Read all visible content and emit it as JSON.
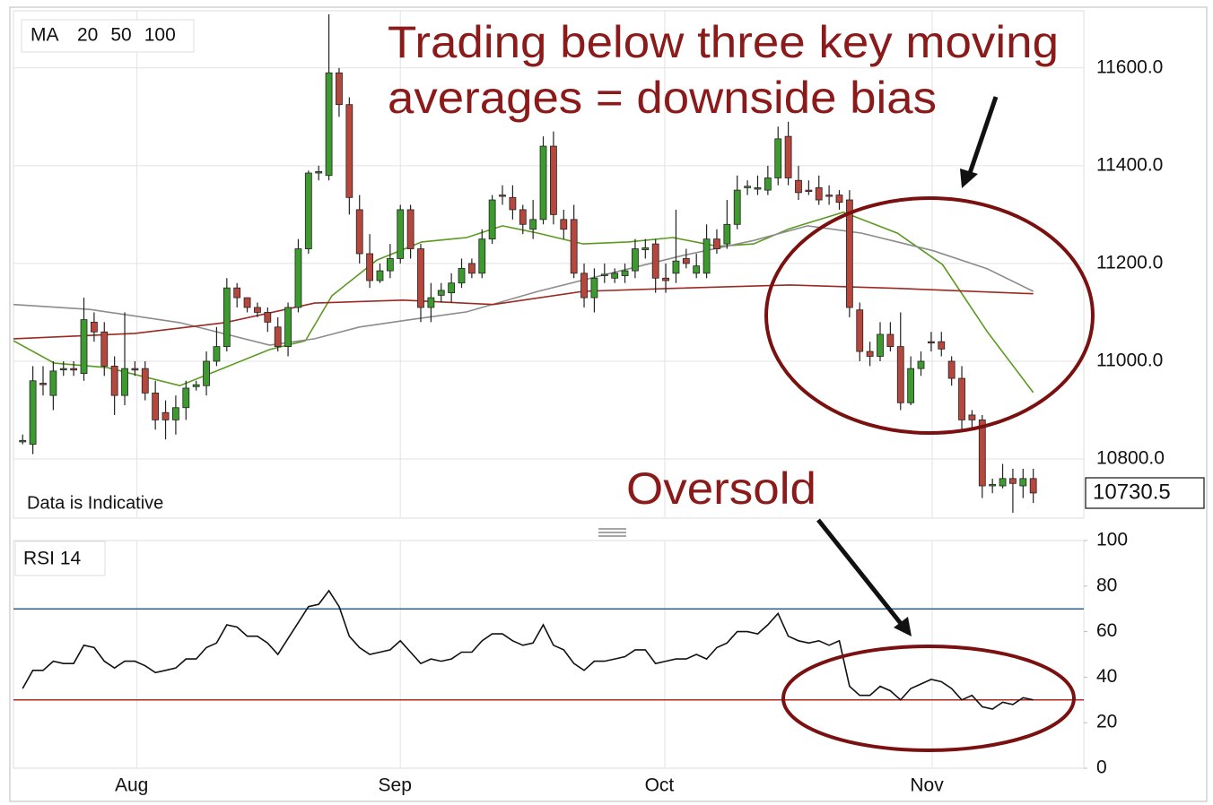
{
  "chart_data": [
    {
      "type": "candlestick",
      "legend_title": "MA",
      "note": "Data is Indicative",
      "annotations": [
        "Trading below three key moving",
        "averages = downside bias",
        "Oversold"
      ],
      "up_color": "#3d9a2f",
      "down_color": "#b5473d",
      "open": [
        10835,
        10830,
        10955,
        10930,
        10983,
        10985,
        10975,
        11080,
        11060,
        10990,
        10930,
        10985,
        10985,
        10935,
        10895,
        10880,
        10905,
        10948,
        10950,
        11000,
        11030,
        11150,
        11130,
        11110,
        11100,
        11070,
        11030,
        11110,
        11230,
        11385,
        11380,
        11590,
        11525,
        11310,
        11220,
        11165,
        11185,
        11210,
        11310,
        11230,
        11110,
        11135,
        11140,
        11160,
        11200,
        11180,
        11250,
        11340,
        11335,
        11310,
        11270,
        11290,
        11440,
        11290,
        11290,
        11180,
        11130,
        11175,
        11170,
        11175,
        11185,
        11228,
        11240,
        11170,
        11180,
        11210,
        11180,
        11180,
        11250,
        11240,
        11280,
        11355,
        11352,
        11350,
        11375,
        11460,
        11370,
        11350,
        11355,
        11340,
        11340,
        11330,
        11105,
        11020,
        11010,
        11055,
        11030,
        10915,
        10985,
        11040,
        11040,
        11000,
        10965,
        10890,
        10880,
        10745,
        10745,
        10760,
        10745,
        10760
      ],
      "high": [
        10850,
        10990,
        10990,
        11000,
        11000,
        11000,
        11130,
        11100,
        11080,
        11010,
        11100,
        11000,
        11000,
        10960,
        10920,
        10930,
        10960,
        10960,
        11020,
        11070,
        11170,
        11160,
        11130,
        11120,
        11110,
        11090,
        11120,
        11250,
        11390,
        11400,
        11710,
        11600,
        11540,
        11340,
        11260,
        11200,
        11240,
        11320,
        11320,
        11240,
        11160,
        11160,
        11180,
        11210,
        11210,
        11270,
        11340,
        11360,
        11360,
        11320,
        11330,
        11460,
        11470,
        11310,
        11320,
        11200,
        11190,
        11200,
        11190,
        11200,
        11250,
        11250,
        11250,
        11200,
        11310,
        11230,
        11220,
        11280,
        11270,
        11330,
        11380,
        11370,
        11380,
        11400,
        11480,
        11490,
        11400,
        11370,
        11380,
        11360,
        11350,
        11350,
        11120,
        11040,
        11080,
        11080,
        11100,
        11010,
        11020,
        11060,
        11060,
        11010,
        10990,
        10900,
        10890,
        10760,
        10790,
        10780,
        10780,
        10780
      ],
      "low": [
        10830,
        10810,
        10930,
        10900,
        10970,
        10970,
        10960,
        11040,
        10970,
        10890,
        10910,
        10970,
        10920,
        10860,
        10840,
        10850,
        10880,
        10940,
        10930,
        10990,
        11020,
        11110,
        11100,
        11090,
        11060,
        11020,
        11010,
        11100,
        11220,
        11370,
        11370,
        11500,
        11300,
        11200,
        11150,
        11160,
        11170,
        11200,
        11210,
        11080,
        11080,
        11120,
        11120,
        11150,
        11170,
        11170,
        11240,
        11320,
        11290,
        11260,
        11250,
        11280,
        11280,
        11250,
        11170,
        11110,
        11100,
        11160,
        11160,
        11160,
        11170,
        11210,
        11140,
        11140,
        11160,
        11190,
        11170,
        11170,
        11220,
        11230,
        11270,
        11340,
        11340,
        11340,
        11360,
        11360,
        11330,
        11340,
        11320,
        11320,
        11310,
        11090,
        11000,
        10990,
        11000,
        11020,
        10900,
        10910,
        10970,
        11020,
        11010,
        10950,
        10860,
        10860,
        10720,
        10730,
        10740,
        10690,
        10720,
        10710
      ],
      "close": [
        10838,
        10960,
        10952,
        10980,
        10985,
        10982,
        11085,
        11060,
        10990,
        10930,
        10985,
        10982,
        10935,
        10880,
        10880,
        10905,
        10945,
        10952,
        11000,
        11030,
        11150,
        11130,
        11110,
        11100,
        11080,
        11030,
        11110,
        11230,
        11385,
        11388,
        11590,
        11525,
        11335,
        11220,
        11165,
        11185,
        11210,
        11310,
        11230,
        11110,
        11130,
        11145,
        11160,
        11190,
        11180,
        11250,
        11330,
        11338,
        11310,
        11280,
        11290,
        11440,
        11300,
        11270,
        11180,
        11130,
        11170,
        11178,
        11180,
        11185,
        11230,
        11232,
        11170,
        11165,
        11205,
        11200,
        11195,
        11250,
        11230,
        11280,
        11350,
        11358,
        11355,
        11375,
        11455,
        11375,
        11345,
        11348,
        11330,
        11338,
        11325,
        11110,
        11020,
        11010,
        11055,
        11030,
        10915,
        10985,
        11000,
        11038,
        11025,
        10965,
        10880,
        10880,
        10745,
        10748,
        10760,
        10750,
        10760,
        10730.5
      ],
      "series": [
        {
          "name": "20",
          "color": "#5a9a1e",
          "x": [
            -0.9,
            3.1,
            8.3,
            15.4,
            19.8,
            24.2,
            27.7,
            30.3,
            34.7,
            39.1,
            43.5,
            47,
            50.5,
            54.9,
            59.3,
            63.7,
            68.1,
            71.6,
            75.1,
            80.4,
            85.7,
            90.1,
            94.5,
            99
          ],
          "values": [
            11042,
            10996,
            10987,
            10950,
            10987,
            11024,
            11042,
            11134,
            11207,
            11244,
            11253,
            11277,
            11262,
            11240,
            11244,
            11253,
            11235,
            11240,
            11271,
            11305,
            11262,
            11198,
            11060,
            10936
          ]
        },
        {
          "name": "50",
          "color": "#8c8c8c",
          "x": [
            -0.9,
            6.6,
            15.4,
            24.2,
            28.6,
            33,
            37.3,
            43.5,
            50.5,
            57.6,
            64.6,
            71.6,
            76.9,
            82.2,
            89.2,
            94.5,
            99
          ],
          "values": [
            11116,
            11106,
            11079,
            11033,
            11046,
            11070,
            11083,
            11101,
            11143,
            11180,
            11216,
            11247,
            11277,
            11262,
            11226,
            11189,
            11143
          ]
        },
        {
          "name": "100",
          "color": "#9b2a22",
          "x": [
            -0.9,
            11,
            19.8,
            28.6,
            37.3,
            46.1,
            54.9,
            63.7,
            75.1,
            85.7,
            99
          ],
          "values": [
            11046,
            11057,
            11079,
            11119,
            11125,
            11116,
            11143,
            11149,
            11156,
            11149,
            11138
          ]
        }
      ],
      "xlim": [
        -0.9,
        103.95
      ],
      "ylim": [
        10679,
        11717
      ],
      "yticks": [
        {
          "value": 10800,
          "label": "10800.0"
        },
        {
          "value": 11000,
          "label": "11000.0"
        },
        {
          "value": 11200,
          "label": "11200.0"
        },
        {
          "value": 11400,
          "label": "11400.0"
        },
        {
          "value": 11600,
          "label": "11600.0"
        }
      ],
      "grid": true
    },
    {
      "type": "line",
      "series": [
        {
          "name": "RSI 14",
          "color": "#111111",
          "values": [
            35,
            43,
            43,
            47,
            46,
            46,
            54,
            53,
            47,
            44,
            47,
            47,
            45,
            42,
            43,
            44,
            48,
            48,
            53,
            55,
            63,
            62,
            58,
            58,
            55,
            50,
            57,
            64,
            71,
            72,
            78,
            71,
            58,
            53,
            50,
            51,
            52,
            56,
            51,
            46,
            48,
            47,
            48,
            51,
            51,
            56,
            59,
            59,
            56,
            54,
            55,
            63,
            54,
            52,
            46,
            43,
            47,
            47,
            48,
            49,
            52,
            52,
            46,
            47,
            48,
            48,
            50,
            48,
            53,
            55,
            60,
            60,
            59,
            63,
            68,
            58,
            56,
            55,
            56,
            54,
            56,
            36,
            32,
            32,
            36,
            34,
            30,
            35,
            37,
            39,
            38,
            35,
            30,
            32,
            27,
            26,
            29,
            28,
            31,
            30
          ]
        }
      ],
      "levels": [
        {
          "value": 70,
          "color": "#2f5f8a"
        },
        {
          "value": 30,
          "color": "#b02a22"
        }
      ],
      "xlim": [
        -0.9,
        103.95
      ],
      "xticks": [
        {
          "value": 11.2,
          "label": "Aug"
        },
        {
          "value": 37.0,
          "label": "Sep"
        },
        {
          "value": 62.9,
          "label": "Oct"
        },
        {
          "value": 89.1,
          "label": "Nov"
        }
      ],
      "ylim": [
        0,
        100
      ],
      "yticks": [
        0,
        20,
        40,
        60,
        80,
        100
      ]
    }
  ]
}
